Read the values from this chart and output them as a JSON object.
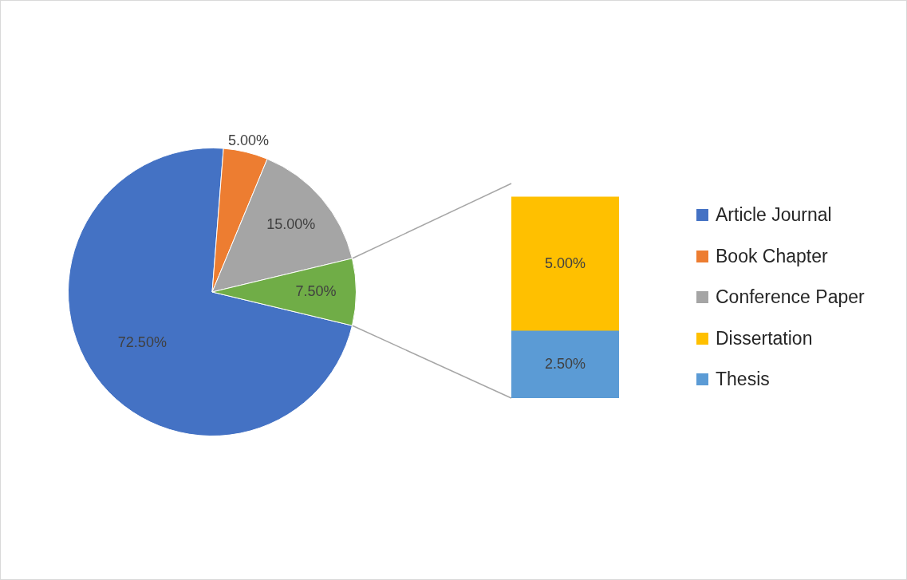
{
  "chart_data": [
    {
      "type": "pie",
      "categories": [
        "Article Journal",
        "Book Chapter",
        "Conference Paper",
        null
      ],
      "values": [
        72.5,
        5,
        15,
        7.5
      ],
      "colors": [
        "#4472c4",
        "#ed7d31",
        "#a5a5a5",
        "#70ad47"
      ],
      "value_labels": [
        "72.50%",
        "5.00%",
        "15.00%",
        "7.50%"
      ],
      "legend": "right"
    },
    {
      "type": "bar",
      "stacked": true,
      "categories": [
        null
      ],
      "series": [
        {
          "name": "Thesis",
          "color": "#5b9bd5",
          "values": [
            2.5
          ],
          "value_labels": [
            "2.50%"
          ]
        },
        {
          "name": "Dissertation",
          "color": "#ffc000",
          "values": [
            5
          ],
          "value_labels": [
            "5.00%"
          ]
        }
      ],
      "legend": "right"
    }
  ]
}
